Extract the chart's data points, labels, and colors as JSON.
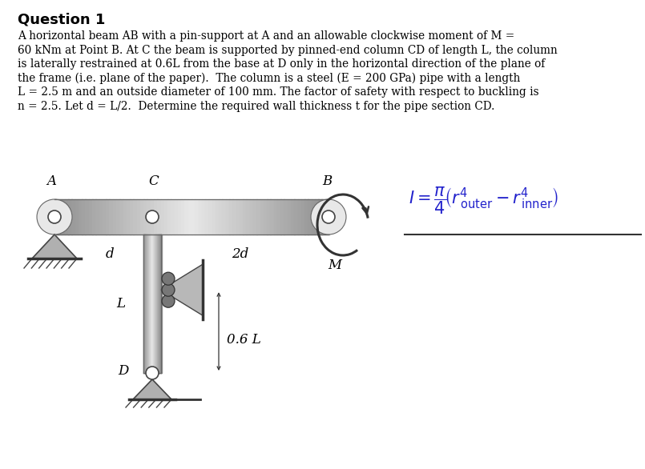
{
  "title": "Question 1",
  "body_lines": [
    "A horizontal beam AB with a pin-support at A and an allowable clockwise moment of M =",
    "60 kNm at Point B. At C the beam is supported by pinned-end column CD of length L, the column",
    "is laterally restrained at 0.6L from the base at D only in the horizontal direction of the plane of",
    "the frame (i.e. plane of the paper).  The column is a steel (E = 200 GPa) pipe with a length",
    "L = 2.5 m and an outside diameter of 100 mm. The factor of safety with respect to buckling is",
    "n = 2.5. Let d = L/2.  Determine the required wall thickness t for the pipe section CD."
  ],
  "bg_color": "#ffffff",
  "beam_color_dark": "#909090",
  "beam_color_mid": "#e8e8e8",
  "col_color_dark": "#909090",
  "col_color_mid": "#e8e8e8",
  "support_color": "#b0b0b0",
  "formula_color": "#2222cc"
}
